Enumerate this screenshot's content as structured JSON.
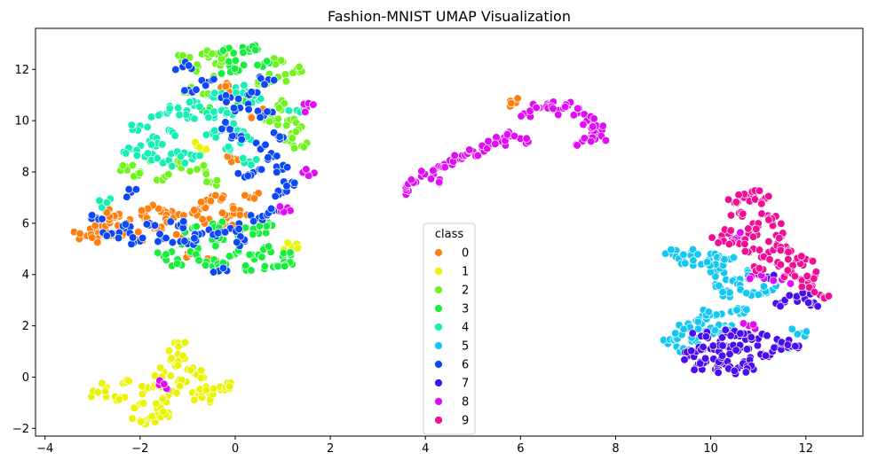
{
  "chart_data": {
    "type": "scatter",
    "title": "Fashion-MNIST UMAP Visualization",
    "xlabel": "",
    "ylabel": "",
    "xlim": [
      -4.2,
      13.2
    ],
    "ylim": [
      -2.3,
      13.6
    ],
    "xticks": [
      -4,
      -2,
      0,
      2,
      4,
      6,
      8,
      10,
      12
    ],
    "yticks": [
      -2,
      0,
      2,
      4,
      6,
      8,
      10,
      12
    ],
    "grid": false,
    "legend": {
      "title": "class",
      "placement": "bottom-center"
    },
    "series": [
      {
        "name": "0",
        "color": "#ff7f0e",
        "points": [
          [
            -3.2,
            5.5
          ],
          [
            -3.0,
            5.7
          ],
          [
            -2.8,
            5.9
          ],
          [
            -2.6,
            6.2
          ],
          [
            -2.5,
            5.6
          ],
          [
            -2.3,
            6.0
          ],
          [
            -2.1,
            5.5
          ],
          [
            -1.9,
            6.3
          ],
          [
            -1.7,
            5.8
          ],
          [
            -1.5,
            6.5
          ],
          [
            -1.3,
            6.2
          ],
          [
            -1.1,
            5.4
          ],
          [
            -0.9,
            6.4
          ],
          [
            -0.7,
            6.7
          ],
          [
            -0.5,
            6.0
          ],
          [
            -0.3,
            6.9
          ],
          [
            -0.1,
            6.3
          ],
          [
            0.1,
            6.5
          ],
          [
            0.3,
            7.0
          ],
          [
            -0.2,
            5.9
          ],
          [
            -0.6,
            6.9
          ],
          [
            -2.7,
            6.4
          ],
          [
            -1.0,
            4.8
          ],
          [
            -0.5,
            4.6
          ],
          [
            0.0,
            8.5
          ],
          [
            -0.3,
            11.3
          ],
          [
            0.5,
            10.3
          ],
          [
            5.9,
            10.7
          ],
          [
            -1.8,
            6.6
          ],
          [
            -2.9,
            5.4
          ]
        ]
      },
      {
        "name": "1",
        "color": "#e8f400",
        "points": [
          [
            -2.9,
            -0.6
          ],
          [
            -2.7,
            -0.4
          ],
          [
            -2.5,
            -0.9
          ],
          [
            -2.3,
            -0.2
          ],
          [
            -2.1,
            -1.2
          ],
          [
            -1.9,
            -0.5
          ],
          [
            -1.8,
            -1.6
          ],
          [
            -1.7,
            -0.3
          ],
          [
            -1.6,
            -1.1
          ],
          [
            -1.5,
            0.2
          ],
          [
            -1.4,
            -0.7
          ],
          [
            -1.3,
            0.6
          ],
          [
            -1.2,
            -0.2
          ],
          [
            -1.1,
            1.3
          ],
          [
            -1.0,
            0.3
          ],
          [
            -0.9,
            -0.6
          ],
          [
            -0.8,
            0.1
          ],
          [
            -0.7,
            -0.8
          ],
          [
            -0.6,
            -0.4
          ],
          [
            -0.3,
            -0.5
          ],
          [
            -0.2,
            -0.4
          ],
          [
            -2.0,
            -1.7
          ],
          [
            -1.4,
            -1.4
          ],
          [
            -1.2,
            0.9
          ],
          [
            -0.8,
            9.0
          ],
          [
            1.2,
            5.1
          ]
        ]
      },
      {
        "name": "2",
        "color": "#6ef51a",
        "points": [
          [
            -1.1,
            12.4
          ],
          [
            -0.9,
            12.0
          ],
          [
            -0.7,
            12.6
          ],
          [
            -0.5,
            11.6
          ],
          [
            -0.3,
            12.2
          ],
          [
            -1.0,
            11.2
          ],
          [
            -0.6,
            11.0
          ],
          [
            -2.3,
            8.2
          ],
          [
            -2.0,
            8.0
          ],
          [
            -1.7,
            8.5
          ],
          [
            -1.5,
            7.8
          ],
          [
            -1.2,
            8.3
          ],
          [
            -0.8,
            8.1
          ],
          [
            -0.5,
            7.6
          ],
          [
            0.7,
            10.2
          ],
          [
            0.9,
            10.6
          ],
          [
            1.1,
            10.0
          ],
          [
            1.3,
            9.6
          ],
          [
            1.4,
            9.0
          ],
          [
            1.2,
            9.3
          ],
          [
            0.5,
            11.4
          ],
          [
            1.0,
            12.3
          ],
          [
            1.3,
            12.0
          ],
          [
            0.9,
            11.7
          ],
          [
            -0.4,
            12.6
          ],
          [
            0.8,
            10.0
          ]
        ]
      },
      {
        "name": "3",
        "color": "#15ef3c",
        "points": [
          [
            -1.5,
            4.7
          ],
          [
            -1.2,
            4.4
          ],
          [
            -1.0,
            5.3
          ],
          [
            -0.8,
            4.9
          ],
          [
            -0.6,
            4.5
          ],
          [
            -0.4,
            5.3
          ],
          [
            -0.2,
            4.4
          ],
          [
            0.0,
            4.8
          ],
          [
            0.2,
            4.2
          ],
          [
            0.4,
            4.6
          ],
          [
            0.6,
            5.0
          ],
          [
            0.8,
            4.3
          ],
          [
            1.0,
            4.7
          ],
          [
            1.2,
            4.4
          ],
          [
            0.1,
            5.7
          ],
          [
            -0.3,
            6.0
          ],
          [
            0.5,
            5.6
          ],
          [
            0.7,
            6.0
          ],
          [
            -0.9,
            5.8
          ],
          [
            -0.2,
            12.8
          ],
          [
            0.0,
            12.3
          ],
          [
            0.3,
            12.7
          ],
          [
            0.6,
            12.2
          ],
          [
            -0.1,
            11.9
          ],
          [
            -0.5,
            10.4
          ],
          [
            0.2,
            10.8
          ],
          [
            0.3,
            12.8
          ]
        ]
      },
      {
        "name": "4",
        "color": "#12f0b4",
        "points": [
          [
            -2.0,
            9.8
          ],
          [
            -1.8,
            9.2
          ],
          [
            -1.6,
            10.2
          ],
          [
            -1.4,
            9.6
          ],
          [
            -1.2,
            10.5
          ],
          [
            -1.0,
            10.1
          ],
          [
            -0.8,
            10.7
          ],
          [
            -0.6,
            10.3
          ],
          [
            -0.4,
            10.9
          ],
          [
            -0.2,
            10.4
          ],
          [
            -2.2,
            8.9
          ],
          [
            -1.9,
            8.6
          ],
          [
            -1.5,
            8.4
          ],
          [
            -1.2,
            8.7
          ],
          [
            -0.9,
            8.5
          ],
          [
            -0.2,
            8.9
          ],
          [
            0.3,
            8.4
          ],
          [
            -0.5,
            9.5
          ],
          [
            0.2,
            11.2
          ],
          [
            0.5,
            10.8
          ],
          [
            0.0,
            9.7
          ],
          [
            0.2,
            9.3
          ],
          [
            1.3,
            10.4
          ],
          [
            -2.8,
            6.8
          ],
          [
            -1.7,
            9.0
          ]
        ]
      },
      {
        "name": "5",
        "color": "#14c8f2",
        "points": [
          [
            9.2,
            4.8
          ],
          [
            9.4,
            4.6
          ],
          [
            9.6,
            4.9
          ],
          [
            9.8,
            4.4
          ],
          [
            10.0,
            4.8
          ],
          [
            10.1,
            4.1
          ],
          [
            10.3,
            4.6
          ],
          [
            10.5,
            3.8
          ],
          [
            10.2,
            3.5
          ],
          [
            10.4,
            3.2
          ],
          [
            10.6,
            3.6
          ],
          [
            10.8,
            4.0
          ],
          [
            10.9,
            3.3
          ],
          [
            9.1,
            1.3
          ],
          [
            9.3,
            1.6
          ],
          [
            9.5,
            1.9
          ],
          [
            9.7,
            2.2
          ],
          [
            9.9,
            1.8
          ],
          [
            10.1,
            2.4
          ],
          [
            10.3,
            2.0
          ],
          [
            10.5,
            2.6
          ],
          [
            10.7,
            2.5
          ],
          [
            9.4,
            1.1
          ],
          [
            9.6,
            1.4
          ],
          [
            9.9,
            2.5
          ],
          [
            10.2,
            1.7
          ],
          [
            11.3,
            3.4
          ],
          [
            11.6,
            1.3
          ],
          [
            11.9,
            1.7
          ],
          [
            10.1,
            4.4
          ]
        ]
      },
      {
        "name": "6",
        "color": "#0c48f8",
        "points": [
          [
            -2.9,
            6.2
          ],
          [
            -2.6,
            5.6
          ],
          [
            -2.3,
            5.8
          ],
          [
            -2.0,
            5.3
          ],
          [
            -1.8,
            6.0
          ],
          [
            -1.5,
            5.4
          ],
          [
            -1.2,
            5.9
          ],
          [
            -1.0,
            5.2
          ],
          [
            -0.7,
            5.6
          ],
          [
            -0.4,
            5.5
          ],
          [
            -0.1,
            5.8
          ],
          [
            0.2,
            5.3
          ],
          [
            0.5,
            6.2
          ],
          [
            0.8,
            6.5
          ],
          [
            1.0,
            7.2
          ],
          [
            1.2,
            7.6
          ],
          [
            1.0,
            8.1
          ],
          [
            0.8,
            8.6
          ],
          [
            0.6,
            9.0
          ],
          [
            0.4,
            8.0
          ],
          [
            0.2,
            7.8
          ],
          [
            0.0,
            9.4
          ],
          [
            -0.2,
            9.8
          ],
          [
            0.1,
            10.5
          ],
          [
            0.4,
            11.1
          ],
          [
            0.7,
            11.6
          ],
          [
            -0.6,
            11.5
          ],
          [
            -0.9,
            11.1
          ],
          [
            0.6,
            10.2
          ],
          [
            -1.1,
            12.1
          ],
          [
            -0.1,
            10.9
          ],
          [
            -2.2,
            7.2
          ],
          [
            -0.3,
            4.2
          ],
          [
            0.9,
            9.4
          ]
        ]
      },
      {
        "name": "7",
        "color": "#4a0cf2",
        "points": [
          [
            9.5,
            0.8
          ],
          [
            9.7,
            0.4
          ],
          [
            9.9,
            0.6
          ],
          [
            10.1,
            0.3
          ],
          [
            10.3,
            0.5
          ],
          [
            10.5,
            0.2
          ],
          [
            10.7,
            0.6
          ],
          [
            10.9,
            0.3
          ],
          [
            11.1,
            0.8
          ],
          [
            11.3,
            1.0
          ],
          [
            11.5,
            1.3
          ],
          [
            11.7,
            1.2
          ],
          [
            10.0,
            1.1
          ],
          [
            10.2,
            1.4
          ],
          [
            10.4,
            1.2
          ],
          [
            10.6,
            1.6
          ],
          [
            10.8,
            1.1
          ],
          [
            11.0,
            1.5
          ],
          [
            9.8,
            1.6
          ],
          [
            10.4,
            0.9
          ],
          [
            11.5,
            2.9
          ],
          [
            11.8,
            3.1
          ],
          [
            12.0,
            3.4
          ],
          [
            12.1,
            2.8
          ],
          [
            11.2,
            3.9
          ],
          [
            10.5,
            1.8
          ],
          [
            9.7,
            1.0
          ]
        ]
      },
      {
        "name": "8",
        "color": "#e10cf6",
        "points": [
          [
            3.6,
            7.3
          ],
          [
            3.8,
            7.6
          ],
          [
            4.0,
            7.9
          ],
          [
            4.2,
            8.1
          ],
          [
            4.4,
            8.3
          ],
          [
            4.6,
            8.5
          ],
          [
            4.8,
            8.6
          ],
          [
            5.0,
            8.8
          ],
          [
            5.2,
            8.9
          ],
          [
            5.4,
            9.1
          ],
          [
            5.6,
            9.2
          ],
          [
            5.8,
            9.4
          ],
          [
            6.0,
            9.3
          ],
          [
            6.2,
            10.3
          ],
          [
            6.4,
            10.5
          ],
          [
            6.6,
            10.6
          ],
          [
            6.8,
            10.4
          ],
          [
            7.0,
            10.6
          ],
          [
            7.2,
            10.3
          ],
          [
            7.4,
            10.0
          ],
          [
            7.5,
            9.5
          ],
          [
            7.6,
            9.8
          ],
          [
            7.7,
            9.4
          ],
          [
            7.3,
            9.2
          ],
          [
            4.3,
            7.7
          ],
          [
            1.5,
            8.0
          ],
          [
            1.5,
            10.5
          ],
          [
            1.1,
            6.6
          ],
          [
            -1.6,
            -0.3
          ],
          [
            11.0,
            4.0
          ],
          [
            10.6,
            5.5
          ],
          [
            10.8,
            2.0
          ],
          [
            11.5,
            3.8
          ]
        ]
      },
      {
        "name": "9",
        "color": "#f30c95",
        "points": [
          [
            10.5,
            6.8
          ],
          [
            10.7,
            7.0
          ],
          [
            10.9,
            7.1
          ],
          [
            11.1,
            6.9
          ],
          [
            11.2,
            6.3
          ],
          [
            11.0,
            5.9
          ],
          [
            10.8,
            5.6
          ],
          [
            10.6,
            5.2
          ],
          [
            10.9,
            5.0
          ],
          [
            11.2,
            4.8
          ],
          [
            11.4,
            5.2
          ],
          [
            11.6,
            4.9
          ],
          [
            11.8,
            4.5
          ],
          [
            11.7,
            4.1
          ],
          [
            11.9,
            3.8
          ],
          [
            12.1,
            3.5
          ],
          [
            12.3,
            3.2
          ],
          [
            12.2,
            4.0
          ],
          [
            11.5,
            5.5
          ],
          [
            11.3,
            6.0
          ],
          [
            11.4,
            4.4
          ],
          [
            10.4,
            5.7
          ],
          [
            10.6,
            6.4
          ],
          [
            12.0,
            4.6
          ],
          [
            10.2,
            5.3
          ],
          [
            11.1,
            4.2
          ]
        ]
      }
    ]
  }
}
